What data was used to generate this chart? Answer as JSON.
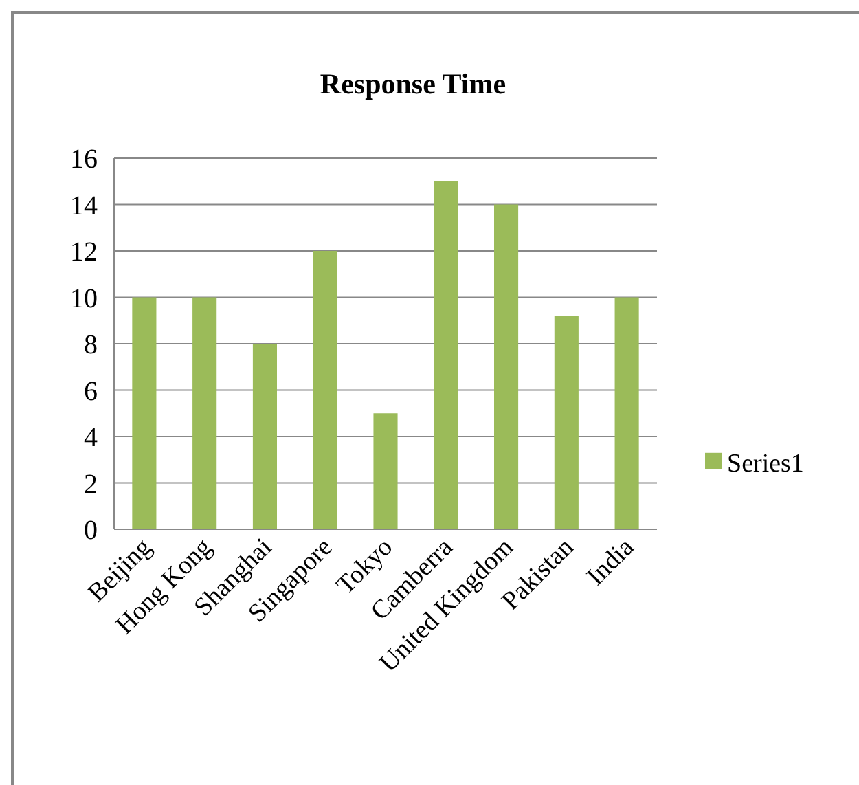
{
  "chart_data": {
    "type": "bar",
    "title": "Response Time",
    "categories": [
      "Beijing",
      "Hong Kong",
      "Shanghai",
      "Singapore",
      "Tokyo",
      "Camberra",
      "United Kingdom",
      "Pakistan",
      "India"
    ],
    "series": [
      {
        "name": "Series1",
        "color": "#9bbb59",
        "values": [
          10,
          10,
          8,
          12,
          5,
          15,
          14,
          9.2,
          10
        ]
      }
    ],
    "ylim": [
      0,
      16
    ],
    "yticks": [
      0,
      2,
      4,
      6,
      8,
      10,
      12,
      14,
      16
    ],
    "grid": "y",
    "legend": "right"
  }
}
